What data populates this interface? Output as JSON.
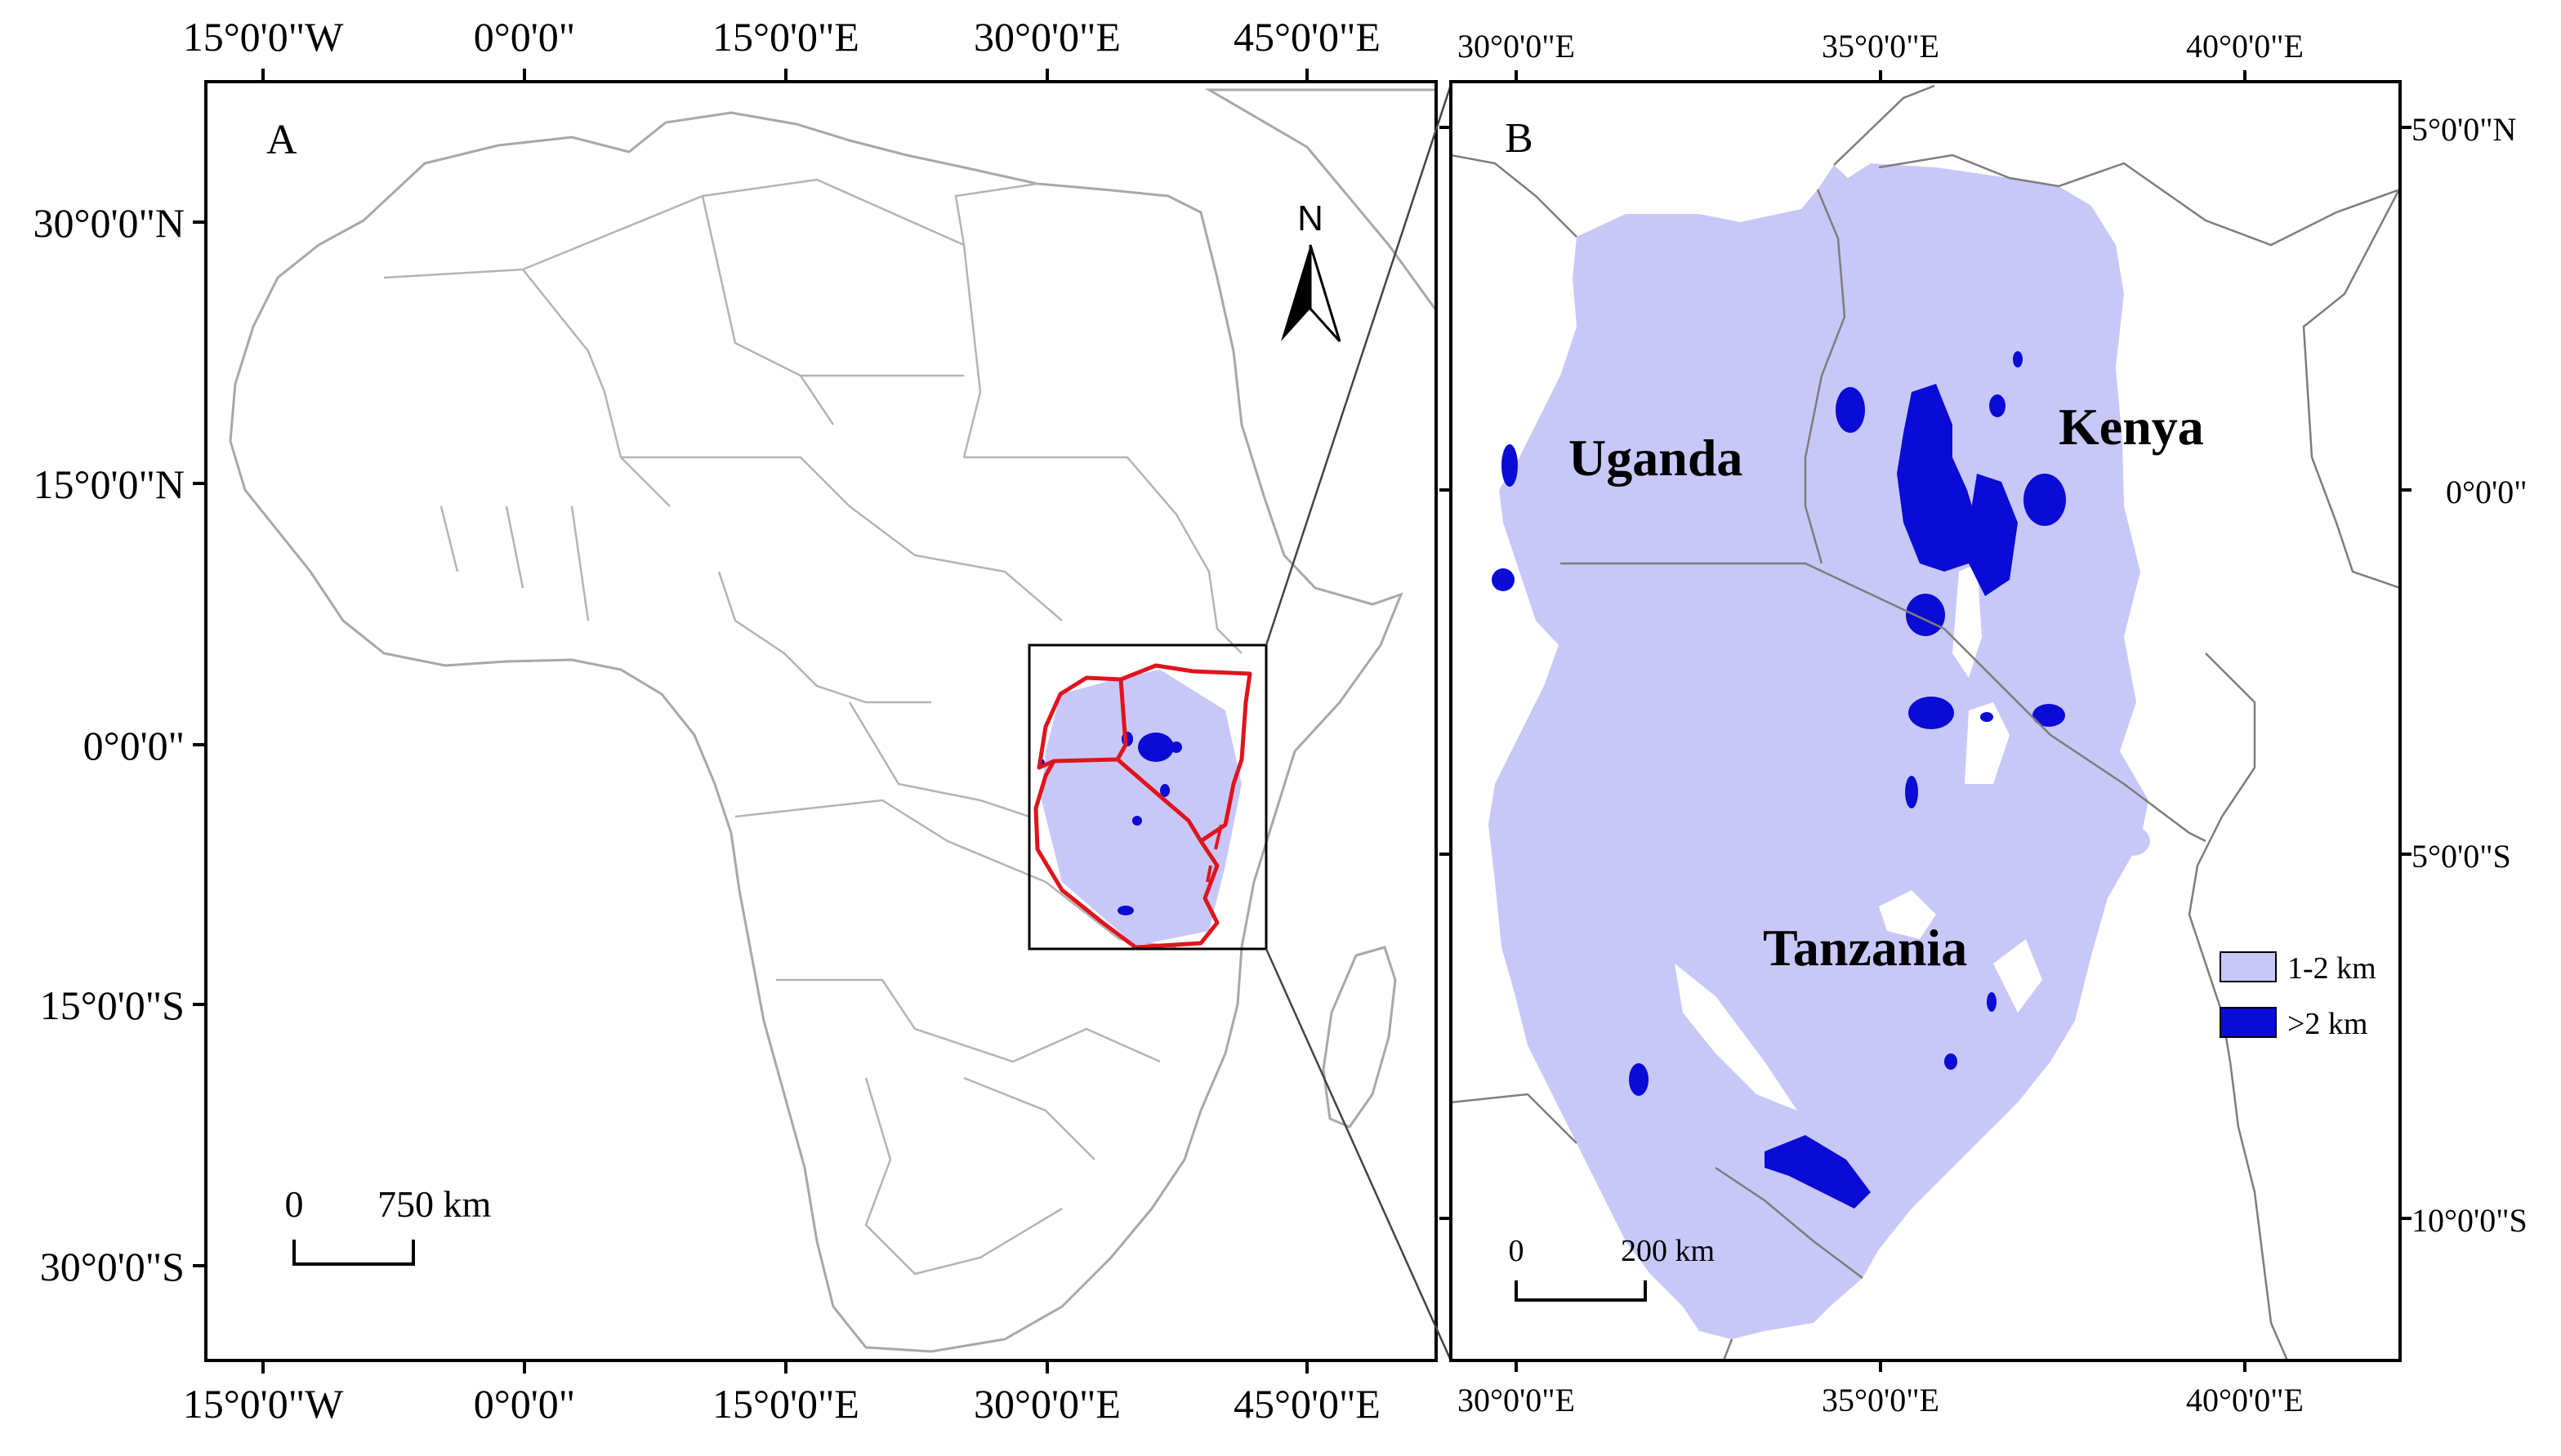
{
  "colors": {
    "elevation_1_2": "#c8c8f8",
    "elevation_gt_2": "#0b0bd6",
    "study_area_outline": "#e0141c",
    "country_borders": "#a8a8a8",
    "frame": "#000000"
  },
  "panel_a": {
    "letter": "A",
    "top_axis": [
      "15°0'0\"W",
      "0°0'0\"",
      "15°0'0\"E",
      "30°0'0\"E",
      "45°0'0\"E"
    ],
    "bottom_axis": [
      "15°0'0\"W",
      "0°0'0\"",
      "15°0'0\"E",
      "30°0'0\"E",
      "45°0'0\"E"
    ],
    "left_axis": [
      "30°0'0\"N",
      "15°0'0\"N",
      "0°0'0\"",
      "15°0'0\"S",
      "30°0'0\"S"
    ],
    "north_arrow_label": "N",
    "north_arrow_icon": "north-arrow-icon",
    "scale_bar": {
      "start": "0",
      "end": "750 km"
    }
  },
  "panel_b": {
    "letter": "B",
    "top_axis": [
      "30°0'0\"E",
      "35°0'0\"E",
      "40°0'0\"E"
    ],
    "bottom_axis": [
      "30°0'0\"E",
      "35°0'0\"E",
      "40°0'0\"E"
    ],
    "right_axis": [
      "5°0'0\"N",
      "0°0'0\"",
      "5°0'0\"S",
      "10°0'0\"S"
    ],
    "countries": [
      "Uganda",
      "Kenya",
      "Tanzania"
    ],
    "scale_bar": {
      "start": "0",
      "end": "200 km"
    },
    "legend": [
      {
        "label": "1-2 km",
        "color": "#c8c8f8"
      },
      {
        "label": ">2 km",
        "color": "#0b0bd6"
      }
    ]
  }
}
